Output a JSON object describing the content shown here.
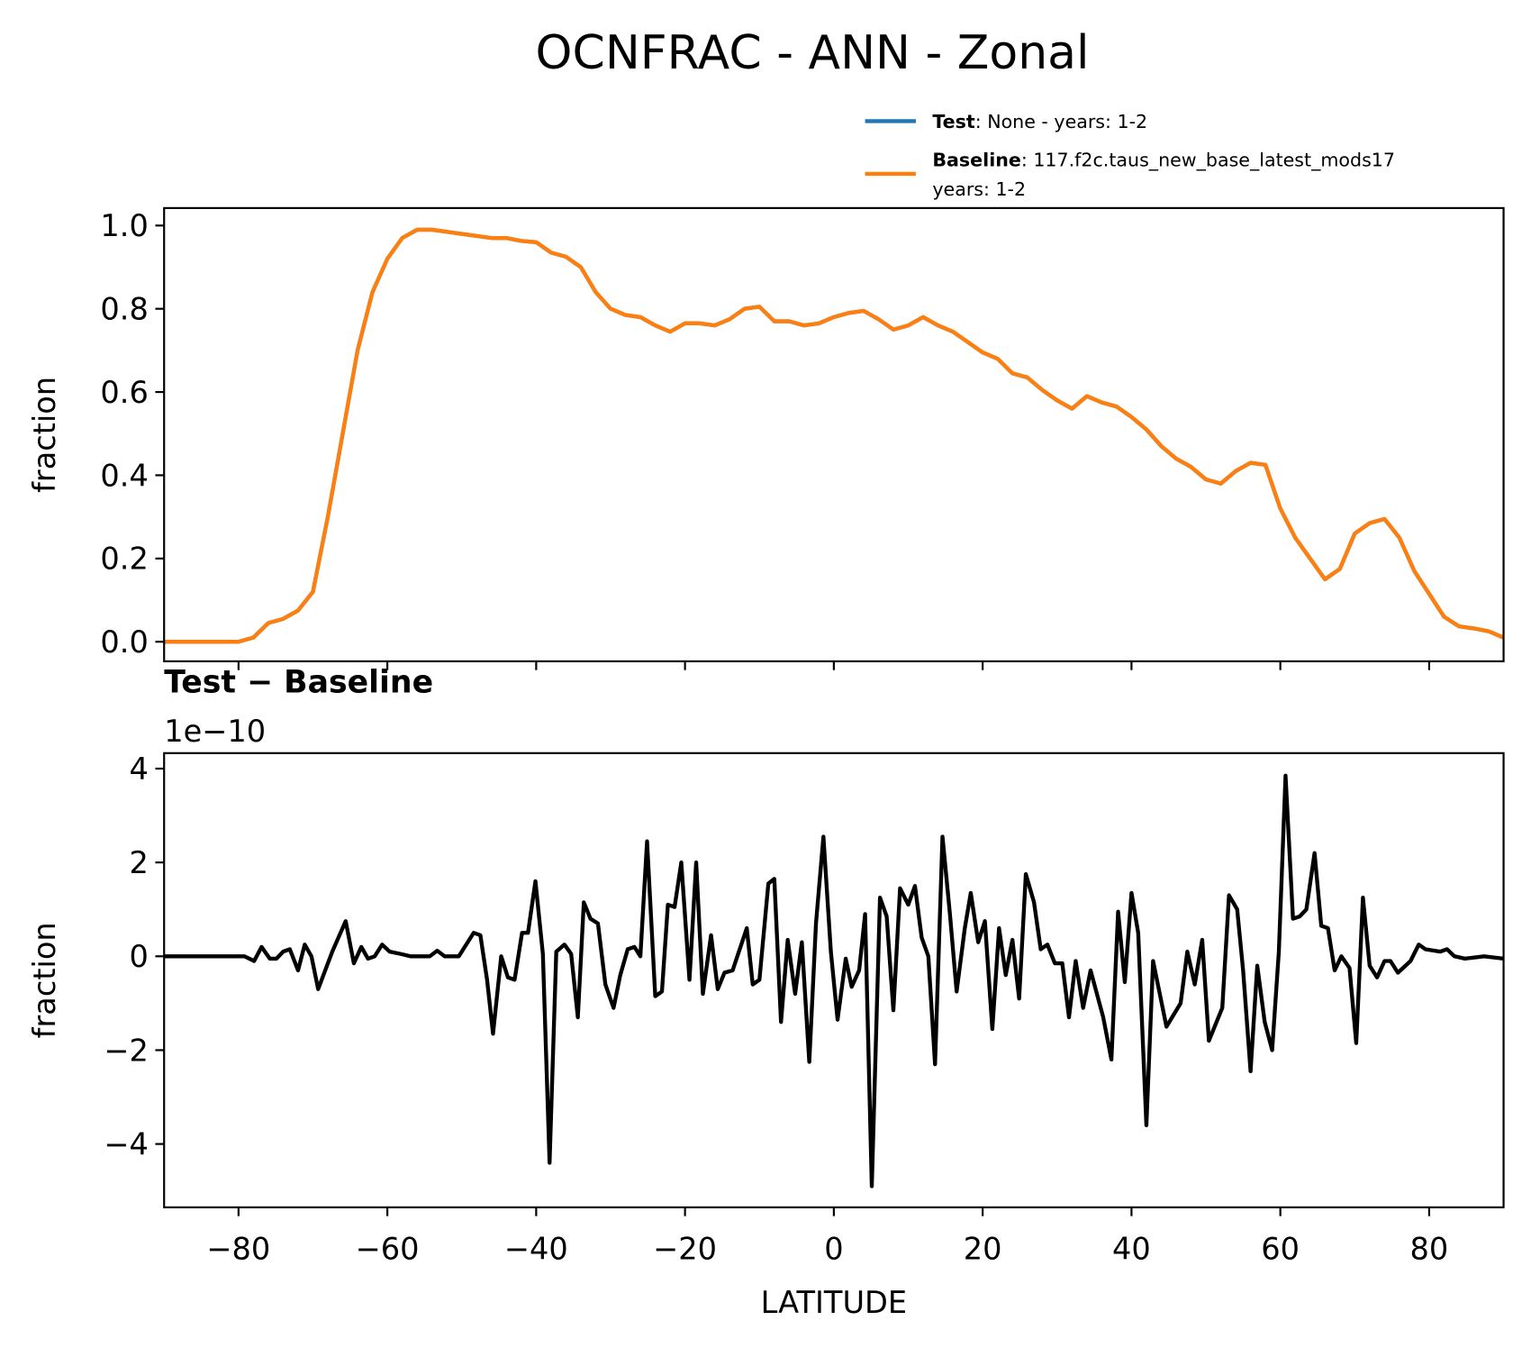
{
  "title": "OCNFRAC - ANN - Zonal",
  "chart_data": [
    {
      "type": "line",
      "ylabel": "fraction",
      "xlim": [
        -90,
        90
      ],
      "xticks": [
        -80,
        -60,
        -40,
        -20,
        0,
        20,
        40,
        60,
        80
      ],
      "ylim": [
        -0.047,
        1.042
      ],
      "yticks": [
        {
          "value": 0,
          "label": "0.0"
        },
        0.2,
        0.4,
        0.6,
        0.8,
        {
          "value": 1,
          "label": "1.0"
        }
      ],
      "x": [
        -90,
        -88,
        -86,
        -84,
        -82,
        -80,
        -78,
        -76,
        -74,
        -72,
        -70,
        -68,
        -66,
        -64,
        -62,
        -60,
        -58,
        -56,
        -54,
        -52,
        -50,
        -48,
        -46,
        -44,
        -42,
        -40,
        -38,
        -36,
        -34,
        -32,
        -30,
        -28,
        -26,
        -24,
        -22,
        -20,
        -18,
        -16,
        -14,
        -12,
        -10,
        -8,
        -6,
        -4,
        -2,
        0,
        2,
        4,
        6,
        8,
        10,
        12,
        14,
        16,
        18,
        20,
        22,
        24,
        26,
        28,
        30,
        32,
        34,
        36,
        38,
        40,
        42,
        44,
        46,
        48,
        50,
        52,
        54,
        56,
        58,
        60,
        62,
        64,
        66,
        68,
        70,
        72,
        74,
        76,
        78,
        80,
        82,
        84,
        86,
        88,
        90
      ],
      "series": [
        {
          "name": "Test",
          "description": ": None - years: 1-2",
          "color": "#1f77b4",
          "values": [
            0,
            0,
            0,
            0,
            0,
            0,
            0.01,
            0.045,
            0.055,
            0.075,
            0.12,
            0.3,
            0.5,
            0.7,
            0.84,
            0.92,
            0.97,
            0.99,
            0.99,
            0.985,
            0.98,
            0.975,
            0.97,
            0.97,
            0.963,
            0.96,
            0.935,
            0.925,
            0.9,
            0.84,
            0.8,
            0.785,
            0.78,
            0.76,
            0.745,
            0.765,
            0.765,
            0.76,
            0.775,
            0.8,
            0.805,
            0.77,
            0.77,
            0.76,
            0.765,
            0.78,
            0.79,
            0.795,
            0.775,
            0.75,
            0.76,
            0.78,
            0.76,
            0.745,
            0.72,
            0.695,
            0.68,
            0.645,
            0.635,
            0.605,
            0.58,
            0.56,
            0.59,
            0.575,
            0.565,
            0.54,
            0.51,
            0.47,
            0.44,
            0.42,
            0.39,
            0.38,
            0.41,
            0.43,
            0.425,
            0.32,
            0.25,
            0.2,
            0.15,
            0.175,
            0.26,
            0.285,
            0.295,
            0.25,
            0.17,
            0.115,
            0.06,
            0.037,
            0.032,
            0.025,
            0.01
          ]
        },
        {
          "name": "Baseline",
          "description": [
            ": 117.f2c.taus_new_base_latest_mods17",
            "years: 1-2"
          ],
          "color": "#ff7f0e",
          "values": [
            0,
            0,
            0,
            0,
            0,
            0,
            0.01,
            0.045,
            0.055,
            0.075,
            0.12,
            0.3,
            0.5,
            0.7,
            0.84,
            0.92,
            0.97,
            0.99,
            0.99,
            0.985,
            0.98,
            0.975,
            0.97,
            0.97,
            0.963,
            0.96,
            0.935,
            0.925,
            0.9,
            0.84,
            0.8,
            0.785,
            0.78,
            0.76,
            0.745,
            0.765,
            0.765,
            0.76,
            0.775,
            0.8,
            0.805,
            0.77,
            0.77,
            0.76,
            0.765,
            0.78,
            0.79,
            0.795,
            0.775,
            0.75,
            0.76,
            0.78,
            0.76,
            0.745,
            0.72,
            0.695,
            0.68,
            0.645,
            0.635,
            0.605,
            0.58,
            0.56,
            0.59,
            0.575,
            0.565,
            0.54,
            0.51,
            0.47,
            0.44,
            0.42,
            0.39,
            0.38,
            0.41,
            0.43,
            0.425,
            0.32,
            0.25,
            0.2,
            0.15,
            0.175,
            0.26,
            0.285,
            0.295,
            0.25,
            0.17,
            0.115,
            0.06,
            0.037,
            0.032,
            0.025,
            0.01
          ]
        }
      ]
    },
    {
      "type": "line",
      "title": "Test − Baseline",
      "offset_text": "1e−10",
      "xlabel": "LATITUDE",
      "ylabel": "fraction",
      "xlim": [
        -90,
        90
      ],
      "xticks": [
        {
          "value": -80,
          "label": "−80"
        },
        {
          "value": -60,
          "label": "−60"
        },
        {
          "value": -40,
          "label": "−40"
        },
        {
          "value": -20,
          "label": "−20"
        },
        0,
        20,
        40,
        60,
        80
      ],
      "ylim": [
        -5.35,
        4.33
      ],
      "yticks": [
        {
          "value": -4,
          "label": "−4"
        },
        {
          "value": -2,
          "label": "−2"
        },
        0,
        2,
        4
      ],
      "x": [
        -90,
        -79.2,
        -77.9,
        -76.9,
        -75.8,
        -74.9,
        -74.0,
        -73.1,
        -72.0,
        -71.1,
        -70.2,
        -69.3,
        -67.4,
        -65.6,
        -64.5,
        -63.5,
        -62.6,
        -61.7,
        -60.7,
        -59.7,
        -58.2,
        -56.9,
        -54.3,
        -53.3,
        -52.3,
        -50.4,
        -48.4,
        -47.5,
        -46.6,
        -45.8,
        -44.7,
        -43.8,
        -42.9,
        -41.9,
        -41.1,
        -40.1,
        -39.1,
        -38.2,
        -37.3,
        -36.2,
        -35.3,
        -34.4,
        -33.6,
        -32.7,
        -31.7,
        -30.7,
        -29.6,
        -28.7,
        -27.7,
        -26.8,
        -26.0,
        -25.1,
        -24.0,
        -23.1,
        -22.3,
        -21.4,
        -20.5,
        -19.4,
        -18.5,
        -17.6,
        -16.5,
        -15.6,
        -14.7,
        -13.6,
        -11.7,
        -10.9,
        -10.0,
        -8.8,
        -8.0,
        -7.1,
        -6.2,
        -5.2,
        -4.3,
        -3.3,
        -2.4,
        -1.4,
        -0.4,
        0.5,
        1.6,
        2.4,
        3.4,
        4.2,
        5.1,
        6.2,
        7.1,
        8.0,
        8.9,
        10.0,
        10.9,
        11.8,
        12.7,
        13.6,
        14.6,
        15.6,
        16.5,
        17.6,
        18.4,
        19.4,
        20.3,
        21.3,
        22.2,
        23.1,
        24.0,
        24.9,
        25.8,
        26.9,
        27.8,
        28.7,
        29.7,
        30.7,
        31.6,
        32.5,
        33.5,
        34.5,
        36.2,
        37.3,
        38.2,
        39.1,
        40.0,
        40.9,
        42.0,
        42.9,
        44.7,
        46.6,
        47.5,
        48.5,
        49.5,
        50.4,
        52.2,
        53.1,
        54.2,
        55.0,
        56.0,
        56.9,
        57.9,
        58.9,
        59.8,
        60.7,
        61.7,
        62.6,
        63.5,
        64.6,
        65.5,
        66.4,
        67.3,
        68.2,
        69.3,
        70.2,
        71.1,
        72.0,
        73.0,
        74.0,
        74.8,
        75.8,
        77.5,
        78.6,
        79.5,
        81.5,
        82.4,
        83.4,
        84.8,
        87.4,
        90
      ],
      "series": [
        {
          "color": "#000000",
          "values": [
            0,
            0,
            -0.1,
            0.2,
            -0.05,
            -0.05,
            0.1,
            0.15,
            -0.3,
            0.25,
            0,
            -0.7,
            0.1,
            0.75,
            -0.15,
            0.2,
            -0.05,
            0,
            0.25,
            0.1,
            0.05,
            0,
            0,
            0.12,
            0,
            0,
            0.5,
            0.45,
            -0.5,
            -1.65,
            0,
            -0.45,
            -0.5,
            0.5,
            0.5,
            1.6,
            0.05,
            -4.4,
            0.1,
            0.25,
            0.05,
            -1.3,
            1.15,
            0.8,
            0.7,
            -0.6,
            -1.1,
            -0.4,
            0.15,
            0.2,
            0,
            2.45,
            -0.85,
            -0.75,
            1.1,
            1.05,
            2.0,
            -0.5,
            2.0,
            -0.8,
            0.45,
            -0.7,
            -0.35,
            -0.3,
            0.6,
            -0.6,
            -0.5,
            1.55,
            1.65,
            -1.4,
            0.35,
            -0.8,
            0.3,
            -2.25,
            0.7,
            2.55,
            0.1,
            -1.35,
            -0.05,
            -0.65,
            -0.3,
            0.9,
            -4.9,
            1.25,
            0.85,
            -1.15,
            1.45,
            1.1,
            1.5,
            0.4,
            0,
            -2.3,
            2.55,
            0.9,
            -0.75,
            0.6,
            1.35,
            0.3,
            0.75,
            -1.55,
            0.6,
            -0.4,
            0.35,
            -0.9,
            1.75,
            1.15,
            0.15,
            0.25,
            -0.15,
            -0.15,
            -1.3,
            -0.1,
            -1.1,
            -0.3,
            -1.3,
            -2.2,
            0.95,
            -0.55,
            1.35,
            0.5,
            -3.6,
            -0.1,
            -1.5,
            -1.0,
            0.1,
            -0.6,
            0.35,
            -1.8,
            -1.1,
            1.3,
            1.0,
            -0.3,
            -2.45,
            -0.2,
            -1.4,
            -2.0,
            0.1,
            3.85,
            0.8,
            0.85,
            1.0,
            2.2,
            0.65,
            0.6,
            -0.3,
            0,
            -0.25,
            -1.85,
            1.25,
            -0.2,
            -0.45,
            -0.1,
            -0.1,
            -0.35,
            -0.1,
            0.25,
            0.15,
            0.1,
            0.15,
            0,
            -0.05,
            0,
            -0.05
          ]
        }
      ]
    }
  ]
}
